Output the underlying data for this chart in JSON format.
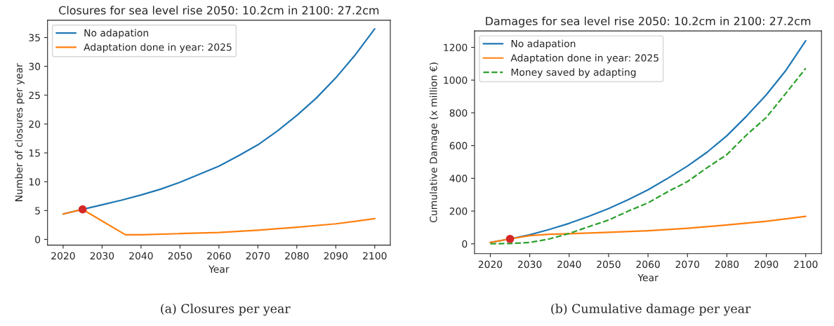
{
  "chart_data": [
    {
      "type": "line",
      "title": "Closures for sea level rise 2050: 10.2cm in 2100: 27.2cm",
      "xlabel": "Year",
      "ylabel": "Number of closures per year",
      "annotations": [
        "(a) Closures per year"
      ],
      "xlim": [
        2016,
        2104
      ],
      "ylim": [
        -1,
        38
      ],
      "xticks": [
        2020,
        2030,
        2040,
        2050,
        2060,
        2070,
        2080,
        2090,
        2100
      ],
      "yticks": [
        0,
        5,
        10,
        15,
        20,
        25,
        30,
        35
      ],
      "legend": "top left",
      "grid": false,
      "series": [
        {
          "name": "No adapation",
          "color": "#1f77b4",
          "x": [
            2020,
            2025,
            2030,
            2035,
            2040,
            2045,
            2050,
            2055,
            2060,
            2065,
            2070,
            2075,
            2080,
            2085,
            2090,
            2095,
            2100
          ],
          "values": [
            4.4,
            5.2,
            6.0,
            6.8,
            7.7,
            8.7,
            9.9,
            11.3,
            12.7,
            14.5,
            16.4,
            18.8,
            21.5,
            24.5,
            28.0,
            32.0,
            36.5
          ]
        },
        {
          "name": "Adaptation done in year: 2025",
          "color": "#ff7f0e",
          "x": [
            2020,
            2025,
            2036,
            2040,
            2050,
            2060,
            2070,
            2080,
            2090,
            2100
          ],
          "values": [
            4.4,
            5.2,
            0.8,
            0.8,
            1.0,
            1.2,
            1.6,
            2.1,
            2.7,
            3.6
          ]
        },
        {
          "type": "scatter",
          "color": "#d62728",
          "marker": "circle",
          "x": [
            2025
          ],
          "values": [
            5.2
          ]
        }
      ]
    },
    {
      "type": "line",
      "title": "Damages for sea level rise 2050: 10.2cm in 2100: 27.2cm",
      "xlabel": "Year",
      "ylabel": "Cumulative Damage (x million €)",
      "annotations": [
        "(b) Cumulative damage per year"
      ],
      "xlim": [
        2016,
        2104
      ],
      "ylim": [
        -60,
        1300
      ],
      "xticks": [
        2020,
        2030,
        2040,
        2050,
        2060,
        2070,
        2080,
        2090,
        2100
      ],
      "yticks": [
        0,
        200,
        400,
        600,
        800,
        1000,
        1200
      ],
      "legend": "top left",
      "grid": false,
      "series": [
        {
          "name": "No adapation",
          "color": "#1f77b4",
          "x": [
            2020,
            2025,
            2030,
            2035,
            2040,
            2045,
            2050,
            2055,
            2060,
            2065,
            2070,
            2075,
            2080,
            2085,
            2090,
            2095,
            2100
          ],
          "values": [
            8,
            30,
            55,
            88,
            125,
            168,
            215,
            270,
            330,
            400,
            475,
            560,
            660,
            780,
            910,
            1060,
            1240
          ]
        },
        {
          "name": "Adaptation done in year: 2025",
          "color": "#ff7f0e",
          "x": [
            2020,
            2025,
            2030,
            2035,
            2040,
            2050,
            2060,
            2070,
            2080,
            2090,
            2100
          ],
          "values": [
            8,
            30,
            50,
            58,
            62,
            70,
            80,
            95,
            115,
            138,
            168
          ]
        },
        {
          "name": "Money saved by adapting",
          "color": "#2ca02c",
          "line_style": "dashed",
          "x": [
            2020,
            2025,
            2030,
            2035,
            2040,
            2045,
            2050,
            2055,
            2060,
            2065,
            2070,
            2075,
            2080,
            2085,
            2090,
            2095,
            2100
          ],
          "values": [
            0,
            2,
            8,
            30,
            63,
            105,
            145,
            200,
            250,
            318,
            380,
            465,
            545,
            665,
            772,
            920,
            1072
          ]
        },
        {
          "type": "scatter",
          "color": "#d62728",
          "marker": "circle",
          "x": [
            2025
          ],
          "values": [
            30
          ]
        }
      ]
    }
  ]
}
